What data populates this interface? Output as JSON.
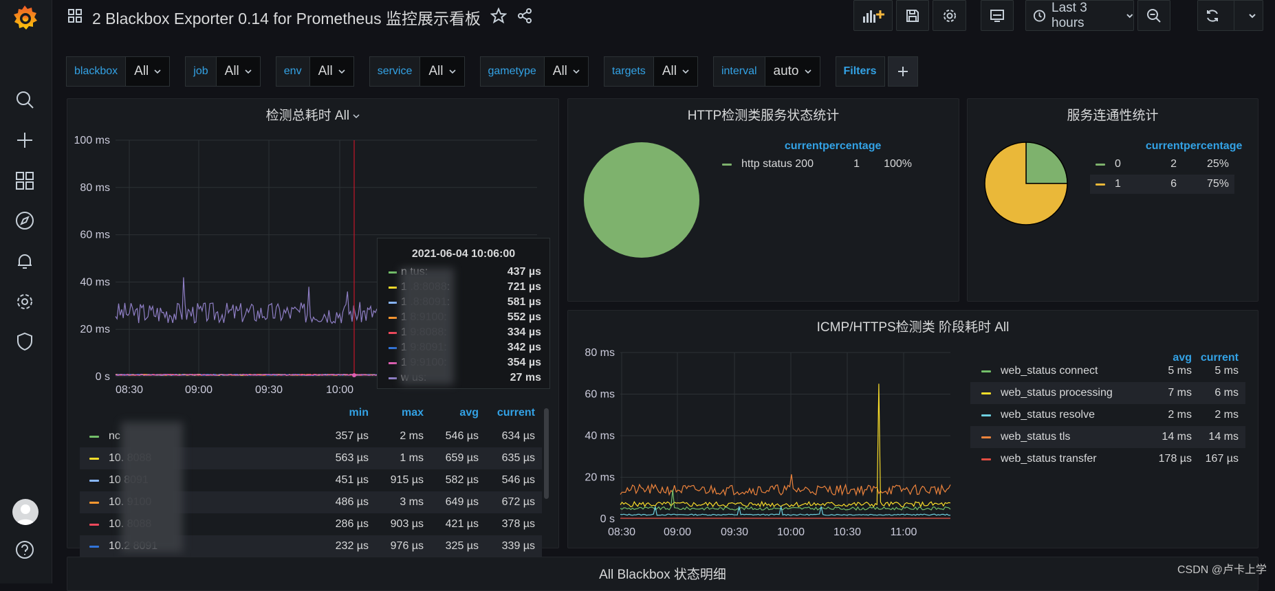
{
  "dashboard": {
    "title": "2 Blackbox Exporter 0.14 for Prometheus 监控展示看板",
    "time_range": "Last 3 hours"
  },
  "variables": [
    {
      "label": "blackbox",
      "value": "All"
    },
    {
      "label": "job",
      "value": "All"
    },
    {
      "label": "env",
      "value": "All"
    },
    {
      "label": "service",
      "value": "All"
    },
    {
      "label": "gametype",
      "value": "All"
    },
    {
      "label": "targets",
      "value": "All"
    },
    {
      "label": "interval",
      "value": "auto"
    }
  ],
  "filters_label": "Filters",
  "colors": {
    "green": "#73bf69",
    "yellow": "#fade2a",
    "cyan": "#5794f2",
    "orange": "#ff9830",
    "red": "#f2495c",
    "blue": "#3274d9",
    "pink": "#b877d9",
    "purple": "#8f7fc6",
    "accent": "#33a2e5",
    "pie_green": "#7eb26d",
    "pie_yellow": "#eab839"
  },
  "panel_latency": {
    "title": "检测总耗时 All",
    "y_ticks": [
      "100 ms",
      "80 ms",
      "60 ms",
      "40 ms",
      "20 ms",
      "0 s"
    ],
    "x_ticks": [
      "08:30",
      "09:00",
      "09:30",
      "10:00"
    ],
    "legend_headers": [
      "min",
      "max",
      "avg",
      "current"
    ],
    "legend": [
      {
        "name": "nc",
        "min": "357 µs",
        "max": "2 ms",
        "avg": "546 µs",
        "current": "634 µs",
        "color": "#73bf69"
      },
      {
        "name": "10.        8088",
        "min": "563 µs",
        "max": "1 ms",
        "avg": "659 µs",
        "current": "635 µs",
        "color": "#fade2a"
      },
      {
        "name": "10         8091",
        "min": "451 µs",
        "max": "915 µs",
        "avg": "582 µs",
        "current": "546 µs",
        "color": "#8ab8ff"
      },
      {
        "name": "10.        9100",
        "min": "486 µs",
        "max": "3 ms",
        "avg": "649 µs",
        "current": "672 µs",
        "color": "#ff9830"
      },
      {
        "name": "10.        8088",
        "min": "286 µs",
        "max": "903 µs",
        "avg": "421 µs",
        "current": "378 µs",
        "color": "#f2495c"
      },
      {
        "name": "10.2       8091",
        "min": "232 µs",
        "max": "976 µs",
        "avg": "325 µs",
        "current": "339 µs",
        "color": "#3274d9"
      }
    ],
    "tooltip": {
      "time": "2021-06-04 10:06:00",
      "rows": [
        {
          "name": "n       tus:",
          "value": "437 µs",
          "color": "#73bf69"
        },
        {
          "name": "1       .8:8088:",
          "value": "721 µs",
          "color": "#fade2a"
        },
        {
          "name": "1       .8:8091:",
          "value": "581 µs",
          "color": "#8ab8ff"
        },
        {
          "name": "1       8:9100:",
          "value": "552 µs",
          "color": "#ff9830"
        },
        {
          "name": "1       9:8088:",
          "value": "334 µs",
          "color": "#f2495c"
        },
        {
          "name": "1       9:8091:",
          "value": "342 µs",
          "color": "#3274d9"
        },
        {
          "name": "1       9:9100:",
          "value": "354 µs",
          "color": "#e05fb3"
        },
        {
          "name": "w       us:",
          "value": "27 ms",
          "color": "#8f7fc6"
        }
      ]
    }
  },
  "panel_http": {
    "title": "HTTP检测类服务状态统计",
    "headers": [
      "current",
      "percentage"
    ],
    "rows": [
      {
        "name": "http status 200",
        "current": "1",
        "percentage": "100%"
      }
    ],
    "chart_data": {
      "type": "pie",
      "categories": [
        "http status 200"
      ],
      "values": [
        1
      ]
    }
  },
  "panel_conn": {
    "title": "服务连通性统计",
    "headers": [
      "current",
      "percentage"
    ],
    "rows": [
      {
        "name": "0",
        "current": "2",
        "percentage": "25%"
      },
      {
        "name": "1",
        "current": "6",
        "percentage": "75%"
      }
    ],
    "chart_data": {
      "type": "pie",
      "categories": [
        "0",
        "1"
      ],
      "values": [
        2,
        6
      ]
    }
  },
  "panel_icmp": {
    "title": "ICMP/HTTPS检测类 阶段耗时 All",
    "y_ticks": [
      "80 ms",
      "60 ms",
      "40 ms",
      "20 ms",
      "0 s"
    ],
    "x_ticks": [
      "08:30",
      "09:00",
      "09:30",
      "10:00",
      "10:30",
      "11:00"
    ],
    "headers": [
      "avg",
      "current"
    ],
    "legend": [
      {
        "name": "web_status connect",
        "avg": "5 ms",
        "current": "5 ms",
        "color": "#73bf69"
      },
      {
        "name": "web_status processing",
        "avg": "7 ms",
        "current": "6 ms",
        "color": "#fade2a"
      },
      {
        "name": "web_status resolve",
        "avg": "2 ms",
        "current": "2 ms",
        "color": "#6ed0e0"
      },
      {
        "name": "web_status tls",
        "avg": "14 ms",
        "current": "14 ms",
        "color": "#ef843c"
      },
      {
        "name": "web_status transfer",
        "avg": "178 µs",
        "current": "167 µs",
        "color": "#e24d42"
      }
    ]
  },
  "panel_bottom": {
    "title": "All Blackbox 状态明细"
  },
  "watermark": "CSDN @卢卡上学"
}
